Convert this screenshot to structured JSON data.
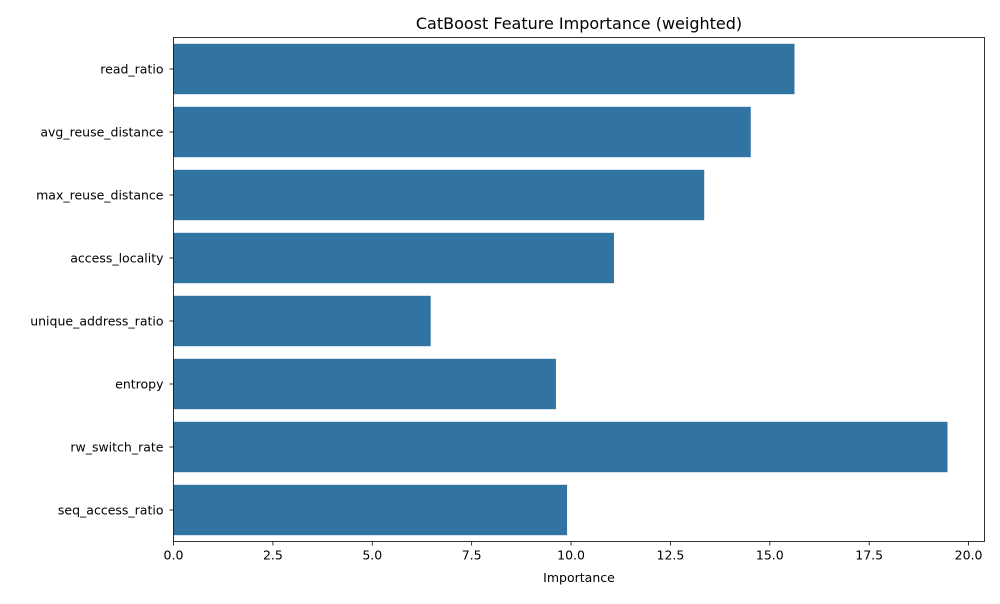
{
  "chart_data": {
    "type": "bar",
    "orientation": "horizontal",
    "title": "CatBoost Feature Importance (weighted)",
    "xlabel": "Importance",
    "ylabel": "",
    "categories": [
      "read_ratio",
      "avg_reuse_distance",
      "max_reuse_distance",
      "access_locality",
      "unique_address_ratio",
      "entropy",
      "rw_switch_rate",
      "seq_access_ratio"
    ],
    "values": [
      15.62,
      14.52,
      13.35,
      11.08,
      6.47,
      9.62,
      19.47,
      9.9
    ],
    "xlim": [
      0,
      20.4
    ],
    "xticks": [
      0.0,
      2.5,
      5.0,
      7.5,
      10.0,
      12.5,
      15.0,
      17.5,
      20.0
    ],
    "xtick_labels": [
      "0.0",
      "2.5",
      "5.0",
      "7.5",
      "10.0",
      "12.5",
      "15.0",
      "17.5",
      "20.0"
    ],
    "grid": false,
    "legend": "none",
    "bar_color": "#3274a1",
    "axis_color": "#000000"
  }
}
